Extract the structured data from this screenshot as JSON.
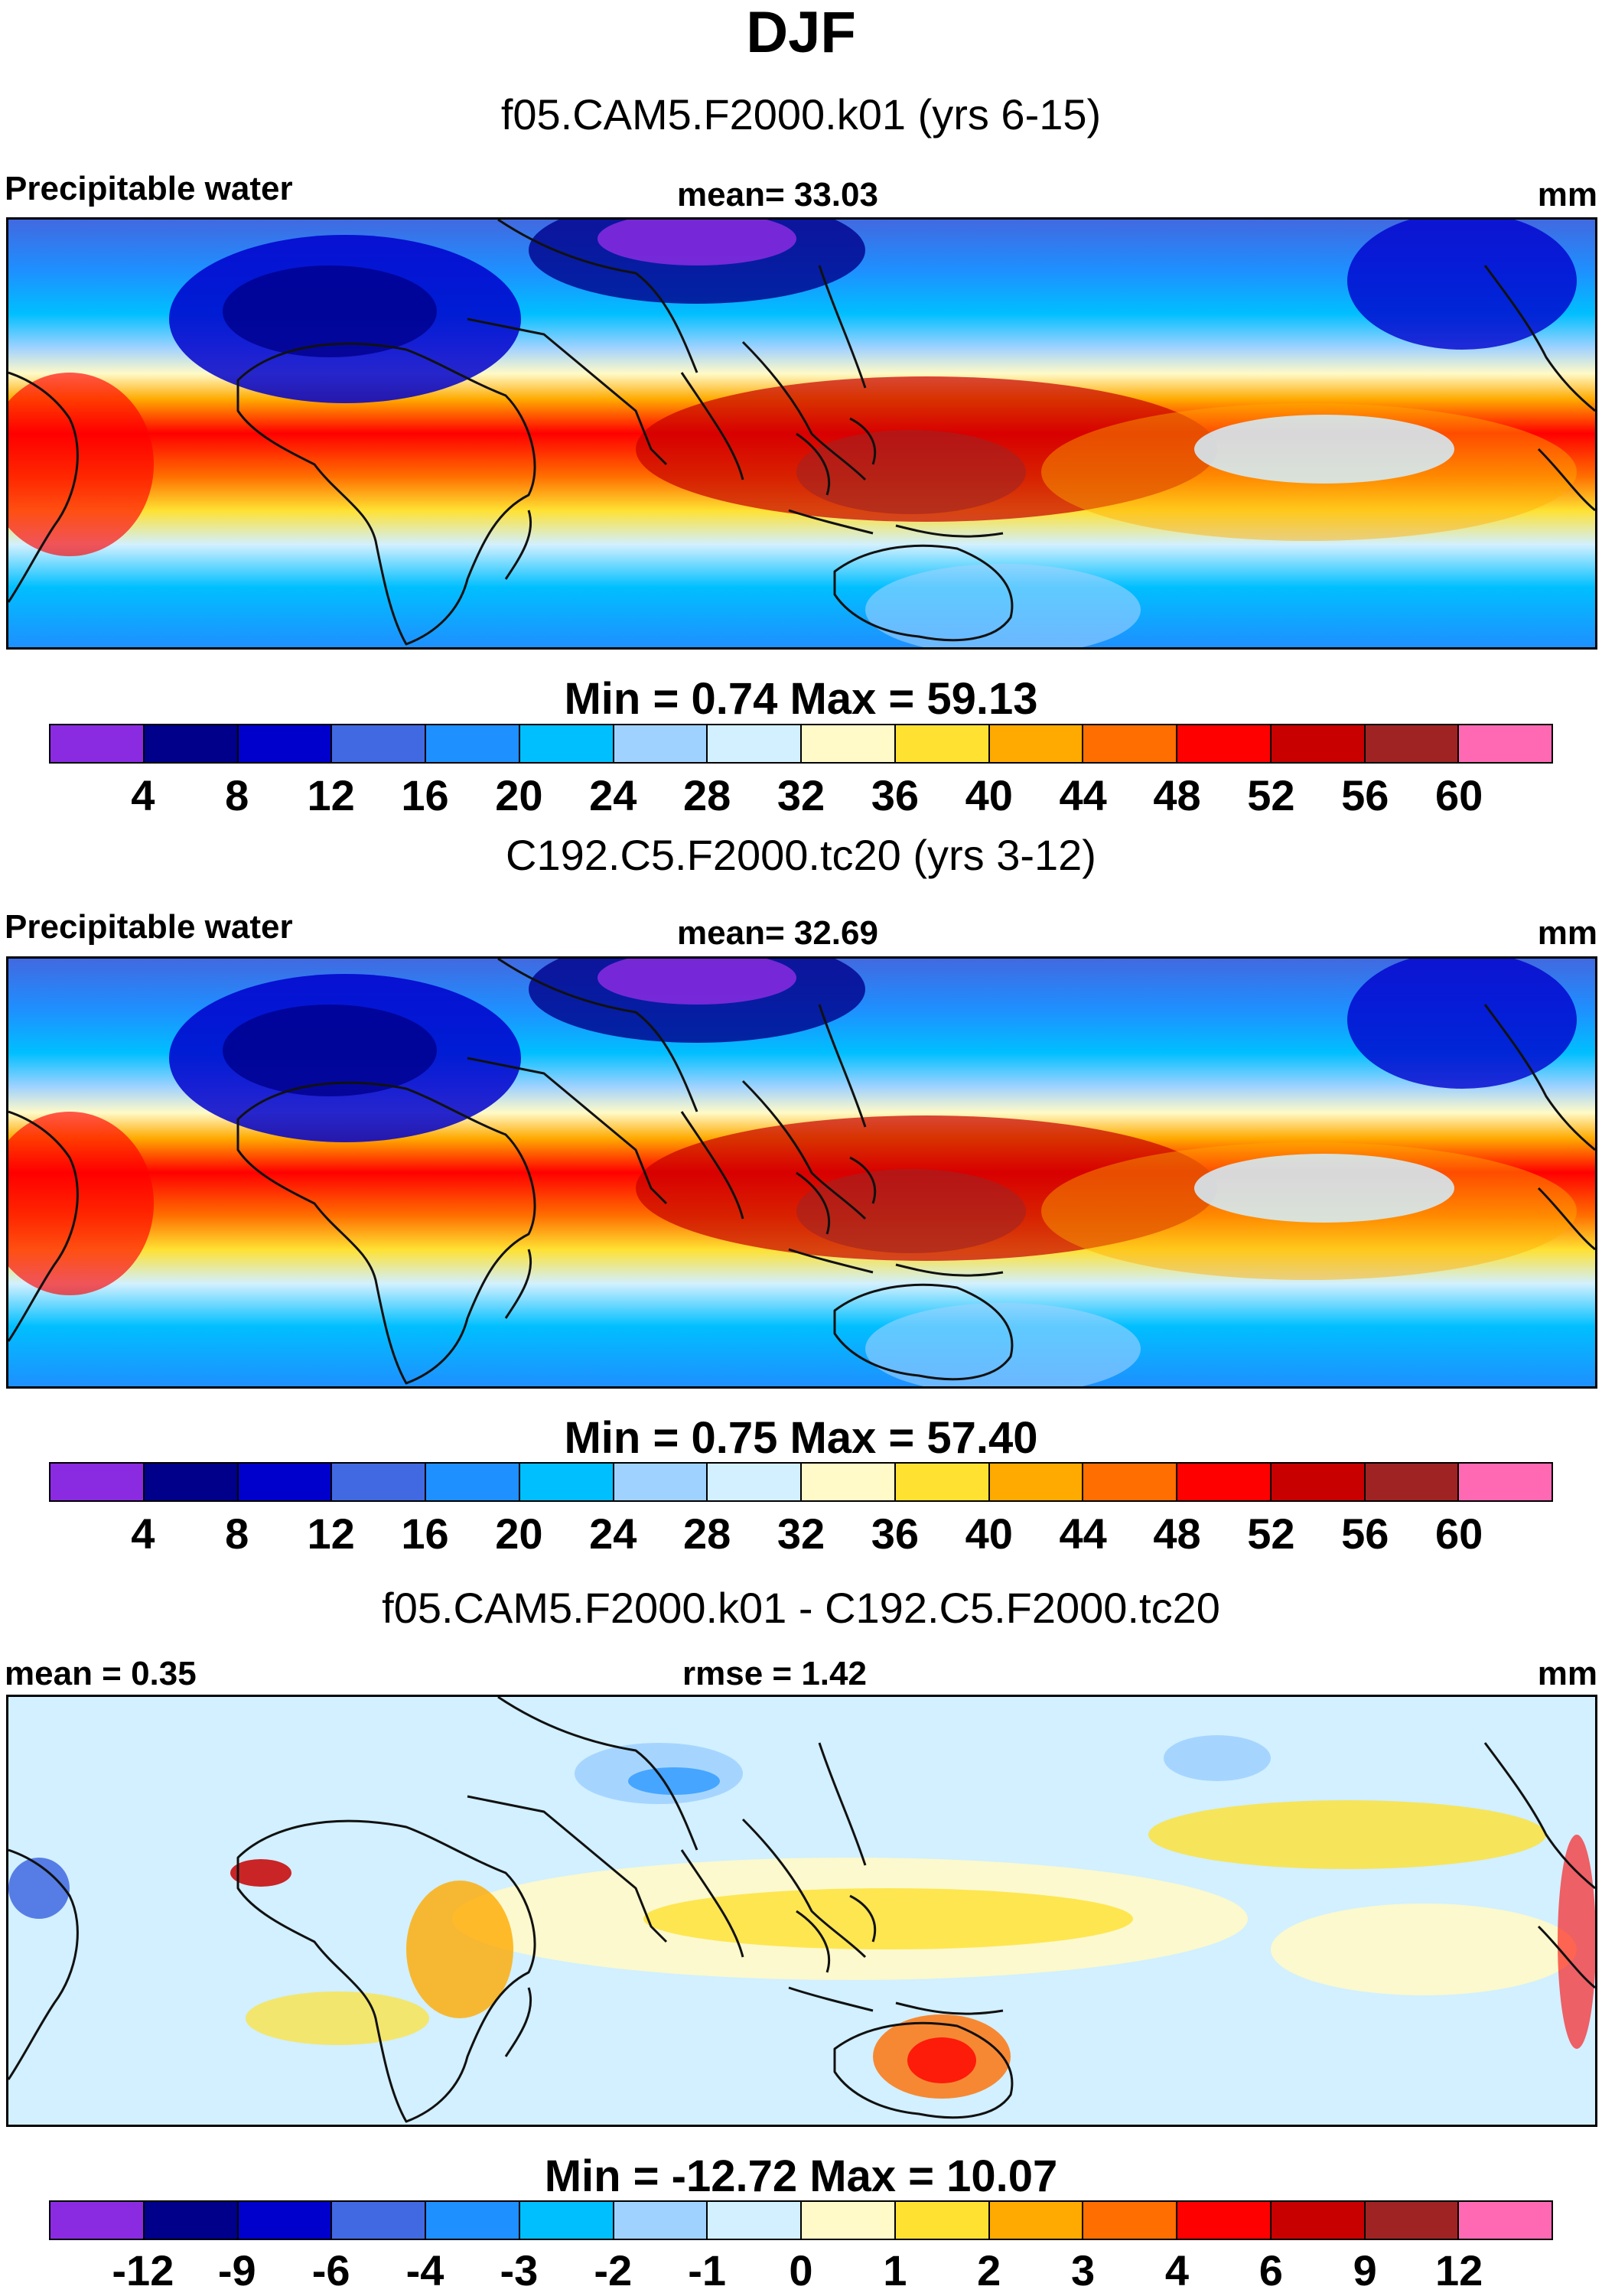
{
  "title": "DJF",
  "colorbar_palette": [
    "#8a2be2",
    "#00008b",
    "#0000cd",
    "#4169e1",
    "#1e90ff",
    "#00bfff",
    "#a0d2ff",
    "#d2f0ff",
    "#fffac8",
    "#ffe132",
    "#ffaa00",
    "#ff6e00",
    "#ff0000",
    "#c80000",
    "#a02323",
    "#ff69b4"
  ],
  "panels": [
    {
      "subtitle": "f05.CAM5.F2000.k01 (yrs 6-15)",
      "left_label": "Precipitable water",
      "center_label": "mean=  33.03",
      "right_label": "mm",
      "minmax": "Min =   0.74 Max =  59.13",
      "colorbar_ticks": [
        "4",
        "8",
        "12",
        "16",
        "20",
        "24",
        "28",
        "32",
        "36",
        "40",
        "44",
        "48",
        "52",
        "56",
        "60"
      ],
      "field": "full"
    },
    {
      "subtitle": "C192.C5.F2000.tc20 (yrs 3-12)",
      "left_label": "Precipitable water",
      "center_label": "mean=  32.69",
      "right_label": "mm",
      "minmax": "Min =   0.75 Max =  57.40",
      "colorbar_ticks": [
        "4",
        "8",
        "12",
        "16",
        "20",
        "24",
        "28",
        "32",
        "36",
        "40",
        "44",
        "48",
        "52",
        "56",
        "60"
      ],
      "field": "full"
    },
    {
      "subtitle": "f05.CAM5.F2000.k01 - C192.C5.F2000.tc20",
      "left_label": "mean =   0.35",
      "center_label": "rmse =   1.42",
      "right_label": "mm",
      "minmax": "Min = -12.72 Max =  10.07",
      "colorbar_ticks": [
        "-12",
        "-9",
        "-6",
        "-4",
        "-3",
        "-2",
        "-1",
        "0",
        "1",
        "2",
        "3",
        "4",
        "6",
        "9",
        "12"
      ],
      "field": "diff"
    }
  ]
}
